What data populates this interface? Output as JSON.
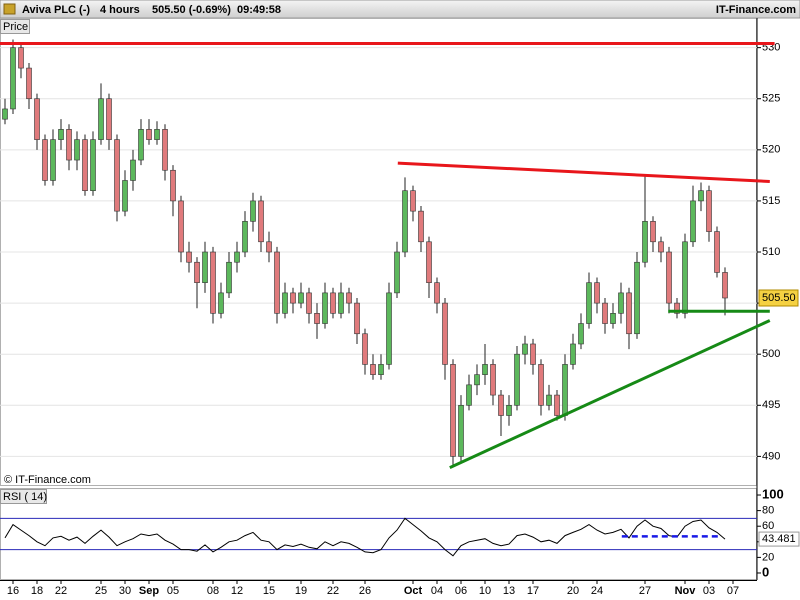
{
  "header": {
    "title": "Aviva PLC (-)",
    "interval": "4 hours",
    "quote": "505.50 (-0.69%)",
    "time": "09:49:58",
    "brand": "IT-Finance.com"
  },
  "chart_data": [
    {
      "type": "candlestick",
      "label": "Price",
      "copyright": "© IT-Finance.com",
      "open": [
        523,
        524,
        530,
        528,
        525,
        521,
        517,
        521,
        522,
        519,
        521,
        516,
        521,
        525,
        521,
        514,
        517,
        519,
        522,
        521,
        522,
        518,
        515,
        510,
        509,
        507,
        510,
        504,
        506,
        509,
        510,
        513,
        515,
        511,
        510,
        504,
        506,
        505,
        506,
        504,
        503,
        506,
        504,
        506,
        505,
        502,
        499,
        498,
        499,
        506,
        510,
        516,
        514,
        511,
        507,
        505,
        499,
        490,
        495,
        497,
        498,
        499,
        496,
        494,
        495,
        500,
        501,
        499,
        495,
        496,
        494,
        499,
        501,
        503,
        507,
        505,
        503,
        504,
        506,
        502,
        509,
        513,
        511,
        510,
        505,
        504,
        511,
        515,
        516,
        512,
        508
      ],
      "high": [
        525,
        530.8,
        530.5,
        528.5,
        525.5,
        521.5,
        522,
        523,
        522.5,
        521.8,
        521.5,
        521.8,
        526.5,
        525.5,
        521.5,
        518,
        520,
        523,
        523,
        522.8,
        522.5,
        518.5,
        515.5,
        511,
        509.5,
        511,
        510.5,
        507,
        510,
        511,
        514,
        515.8,
        515.5,
        512,
        510.5,
        507,
        506.5,
        507,
        506.5,
        505,
        507,
        506.5,
        507,
        506.5,
        505.5,
        502.5,
        500,
        500,
        507,
        511,
        517.3,
        516.5,
        514.5,
        511.5,
        507.5,
        505.5,
        499.5,
        496,
        498,
        499,
        501,
        499.5,
        496.5,
        496,
        500.8,
        501.8,
        501.5,
        499.5,
        497,
        496.5,
        500,
        502,
        504,
        508,
        507.5,
        505.5,
        505,
        507,
        506.5,
        510,
        517.5,
        513.5,
        511.5,
        510.5,
        505.5,
        511.8,
        516.5,
        516.8,
        516.5,
        512.5,
        508.5
      ],
      "low": [
        522.5,
        523.5,
        527,
        524,
        520,
        516.5,
        516.5,
        520,
        518,
        518,
        515.5,
        515.5,
        520.5,
        520,
        513,
        513.5,
        516,
        518.5,
        520.5,
        520.5,
        517,
        513.5,
        509,
        508,
        504.5,
        506,
        503,
        503.5,
        505.5,
        508,
        509.5,
        512,
        510,
        509,
        503,
        503.5,
        504,
        504.5,
        503,
        501.5,
        502.5,
        503.5,
        503.5,
        504,
        501,
        498,
        497.5,
        497.5,
        498.5,
        505.5,
        509.5,
        513,
        510,
        505.5,
        504,
        497.5,
        489,
        489.5,
        494.5,
        496,
        497,
        495,
        492,
        493,
        494.5,
        499,
        498,
        494,
        494.5,
        493.5,
        493.5,
        498.5,
        500.5,
        502.5,
        504,
        502,
        502.5,
        503,
        500.5,
        501.5,
        508.5,
        510,
        509,
        504,
        503.5,
        503.5,
        510.5,
        514,
        511,
        507.5,
        503.8
      ],
      "close": [
        524,
        530,
        528,
        525,
        521,
        517,
        521,
        522,
        519,
        521,
        516,
        521,
        525,
        521,
        514,
        517,
        519,
        522,
        521,
        522,
        518,
        515,
        510,
        509,
        507,
        510,
        504,
        506,
        509,
        510,
        513,
        515,
        511,
        510,
        504,
        506,
        505,
        506,
        504,
        503,
        506,
        504,
        506,
        505,
        502,
        499,
        498,
        499,
        506,
        510,
        516,
        514,
        511,
        507,
        505,
        499,
        490,
        495,
        497,
        498,
        499,
        496,
        494,
        495,
        500,
        501,
        499,
        495,
        496,
        494,
        499,
        501,
        503,
        507,
        505,
        503,
        504,
        506,
        502,
        509,
        513,
        511,
        510,
        505,
        504,
        511,
        515,
        516,
        512,
        508,
        505.5
      ],
      "up_color": "#5cb85c",
      "down_color": "#e07a7c",
      "last_price": {
        "value": 505.5,
        "label": "505.50"
      },
      "xlim": [
        -0.625,
        94
      ],
      "ylim": [
        487.2,
        532.9
      ],
      "yticks": [
        490,
        495,
        500,
        505,
        510,
        515,
        520,
        525,
        530
      ],
      "grid": true,
      "trendlines": [
        {
          "color": "#e8161b",
          "x": [
            -0.625,
            96.2
          ],
          "y": [
            530.4,
            530.4
          ]
        },
        {
          "color": "#e8161b",
          "x": [
            49.1,
            95.6
          ],
          "y": [
            518.7,
            516.9
          ]
        },
        {
          "color": "#168a16",
          "x": [
            55.6,
            95.6
          ],
          "y": [
            488.9,
            503.3
          ]
        },
        {
          "color": "#168a16",
          "x": [
            82.9,
            95.6
          ],
          "y": [
            504.2,
            504.2
          ]
        }
      ]
    },
    {
      "type": "line",
      "label": "RSI ( 14)",
      "color": "#000000",
      "values": [
        45,
        62,
        55,
        48,
        40,
        35,
        45,
        47,
        42,
        46,
        38,
        47,
        55,
        46,
        35,
        40,
        44,
        50,
        48,
        50,
        42,
        37,
        30,
        30,
        28,
        36,
        27,
        33,
        40,
        42,
        48,
        52,
        42,
        40,
        30,
        36,
        34,
        37,
        33,
        31,
        40,
        35,
        40,
        38,
        33,
        27,
        26,
        30,
        45,
        55,
        70,
        62,
        54,
        45,
        40,
        30,
        22,
        35,
        40,
        42,
        44,
        38,
        35,
        37,
        48,
        50,
        46,
        40,
        42,
        38,
        48,
        52,
        56,
        62,
        55,
        50,
        52,
        56,
        45,
        60,
        68,
        60,
        57,
        48,
        46,
        60,
        66,
        68,
        58,
        52,
        43.481
      ],
      "bands": [
        70,
        30
      ],
      "band_color": "#2a2ab8",
      "xlim": [
        -0.625,
        94
      ],
      "ylim": [
        -9,
        109
      ],
      "yticks": [
        100,
        80,
        60,
        40,
        20,
        0
      ],
      "trendlines": [
        {
          "color": "#1a1ae6",
          "dashed": true,
          "x": [
            77.1,
            89.6
          ],
          "y": [
            47,
            47
          ]
        }
      ],
      "xticks": [
        {
          "value": 1,
          "label": "16"
        },
        {
          "value": 4,
          "label": "18"
        },
        {
          "value": 7,
          "label": "22"
        },
        {
          "value": 12,
          "label": "25"
        },
        {
          "value": 15,
          "label": "30"
        },
        {
          "value": 18,
          "label": "Sep"
        },
        {
          "value": 21,
          "label": "05"
        },
        {
          "value": 26,
          "label": "08"
        },
        {
          "value": 29,
          "label": "12"
        },
        {
          "value": 33,
          "label": "15"
        },
        {
          "value": 37,
          "label": "19"
        },
        {
          "value": 41,
          "label": "22"
        },
        {
          "value": 45,
          "label": "26"
        },
        {
          "value": 51,
          "label": "Oct"
        },
        {
          "value": 54,
          "label": "04"
        },
        {
          "value": 57,
          "label": "06"
        },
        {
          "value": 60,
          "label": "10"
        },
        {
          "value": 63,
          "label": "13"
        },
        {
          "value": 66,
          "label": "17"
        },
        {
          "value": 71,
          "label": "20"
        },
        {
          "value": 74,
          "label": "24"
        },
        {
          "value": 80,
          "label": "27"
        },
        {
          "value": 85,
          "label": "Nov"
        },
        {
          "value": 88,
          "label": "03"
        },
        {
          "value": 91,
          "label": "07"
        }
      ]
    }
  ]
}
